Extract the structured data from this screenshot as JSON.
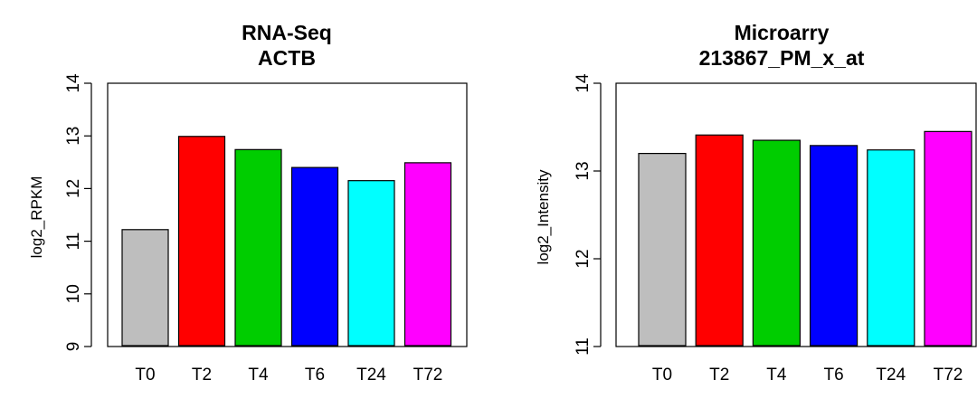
{
  "chart_data": [
    {
      "type": "bar",
      "title": "RNA-Seq",
      "subtitle": "ACTB",
      "xlabel": "",
      "ylabel": "log2_RPKM",
      "ylim": [
        9,
        14
      ],
      "yticks": [
        "9",
        "10",
        "11",
        "12",
        "13",
        "14"
      ],
      "categories": [
        "T0",
        "T2",
        "T4",
        "T6",
        "T24",
        "T72"
      ],
      "values": [
        11.22,
        12.99,
        12.74,
        12.4,
        12.15,
        12.49
      ],
      "colors": [
        "#bebebe",
        "#ff0000",
        "#00cd00",
        "#0000ff",
        "#00ffff",
        "#ff00ff"
      ],
      "grid": false,
      "legend": "none"
    },
    {
      "type": "bar",
      "title": "Microarry",
      "subtitle": "213867_PM_x_at",
      "xlabel": "",
      "ylabel": "log2_Intensity",
      "ylim": [
        11,
        14
      ],
      "yticks": [
        "11",
        "12",
        "13",
        "14"
      ],
      "categories": [
        "T0",
        "T2",
        "T4",
        "T6",
        "T24",
        "T72"
      ],
      "values": [
        13.2,
        13.41,
        13.35,
        13.29,
        13.24,
        13.45
      ],
      "colors": [
        "#bebebe",
        "#ff0000",
        "#00cd00",
        "#0000ff",
        "#00ffff",
        "#ff00ff"
      ],
      "grid": false,
      "legend": "none"
    }
  ]
}
